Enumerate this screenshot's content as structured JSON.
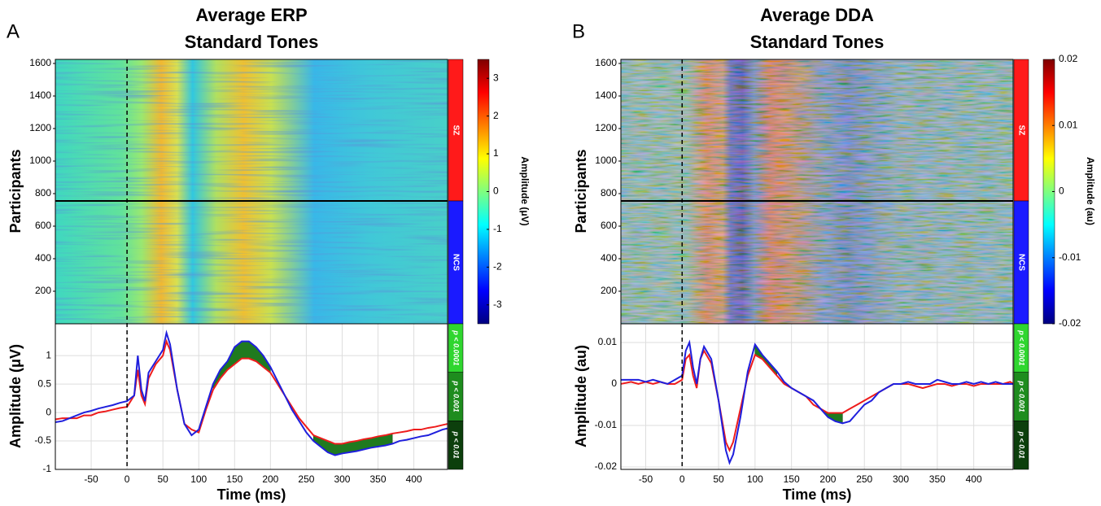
{
  "chart_data": [
    {
      "type": "line",
      "panel_label": "A",
      "title_lines": [
        "Average ERP",
        "Standard Tones"
      ],
      "xlabel": "Time (ms)",
      "ylabel": "Amplitude (μV)",
      "xlim": [
        -100,
        447
      ],
      "xticks": [
        -50,
        0,
        50,
        100,
        150,
        200,
        250,
        300,
        350,
        400
      ],
      "ylim": [
        -1,
        1.56
      ],
      "yticks": [
        -1,
        -0.5,
        0,
        0.5,
        1
      ],
      "grid": true,
      "onset": 0,
      "x": [
        -100,
        -90,
        -80,
        -70,
        -60,
        -50,
        -40,
        -30,
        -20,
        -10,
        0,
        10,
        15,
        20,
        25,
        30,
        40,
        50,
        55,
        60,
        70,
        80,
        90,
        100,
        110,
        120,
        130,
        140,
        150,
        160,
        170,
        180,
        190,
        200,
        210,
        220,
        230,
        240,
        250,
        260,
        270,
        280,
        290,
        300,
        310,
        320,
        330,
        340,
        350,
        360,
        370,
        380,
        390,
        400,
        410,
        420,
        430,
        440,
        447
      ],
      "series": [
        {
          "color": "#1f1fdd",
          "values": [
            -0.17,
            -0.15,
            -0.1,
            -0.05,
            0,
            0.03,
            0.07,
            0.1,
            0.13,
            0.17,
            0.2,
            0.3,
            1.0,
            0.4,
            0.2,
            0.7,
            0.9,
            1.1,
            1.4,
            1.2,
            0.4,
            -0.2,
            -0.4,
            -0.3,
            0.1,
            0.5,
            0.75,
            0.9,
            1.15,
            1.25,
            1.25,
            1.15,
            1.0,
            0.8,
            0.55,
            0.3,
            0.05,
            -0.15,
            -0.35,
            -0.5,
            -0.6,
            -0.7,
            -0.75,
            -0.72,
            -0.7,
            -0.68,
            -0.65,
            -0.62,
            -0.6,
            -0.58,
            -0.55,
            -0.5,
            -0.48,
            -0.45,
            -0.42,
            -0.4,
            -0.35,
            -0.3,
            -0.28
          ]
        },
        {
          "color": "#ee1c1c",
          "values": [
            -0.12,
            -0.1,
            -0.1,
            -0.1,
            -0.05,
            -0.05,
            0,
            0.02,
            0.05,
            0.08,
            0.1,
            0.3,
            0.75,
            0.3,
            0.15,
            0.6,
            0.85,
            1.0,
            1.25,
            1.1,
            0.4,
            -0.2,
            -0.3,
            -0.35,
            0.05,
            0.4,
            0.6,
            0.75,
            0.85,
            0.95,
            0.95,
            0.9,
            0.8,
            0.7,
            0.5,
            0.3,
            0.1,
            -0.1,
            -0.25,
            -0.4,
            -0.45,
            -0.5,
            -0.55,
            -0.55,
            -0.52,
            -0.5,
            -0.47,
            -0.45,
            -0.42,
            -0.4,
            -0.37,
            -0.35,
            -0.33,
            -0.3,
            -0.3,
            -0.27,
            -0.25,
            -0.22,
            -0.2
          ]
        }
      ],
      "significance": {
        "fill_color": "#1f7a1f",
        "ranges": [
          [
            120,
            200
          ],
          [
            255,
            370
          ]
        ],
        "levels": [
          {
            "label": "p < 0.0001",
            "color": "#2fd62f"
          },
          {
            "label": "p < 0.001",
            "color": "#1e8c1e"
          },
          {
            "label": "p < 0.01",
            "color": "#0c3f0c"
          }
        ]
      },
      "heatmap": {
        "ylabel": "Participants",
        "ylim": [
          0,
          1625
        ],
        "yticks": [
          200,
          400,
          600,
          800,
          1000,
          1200,
          1400,
          1600
        ],
        "group_boundary": 755,
        "groups": [
          {
            "name": "SZ",
            "color": "#ff1a1a"
          },
          {
            "name": "NCS",
            "color": "#1a1aff"
          }
        ],
        "colorbar": {
          "label": "Amplitude (μV)",
          "lim": [
            -3.5,
            3.5
          ],
          "ticks": [
            -3,
            -2,
            -1,
            0,
            1,
            2,
            3
          ]
        }
      }
    },
    {
      "type": "line",
      "panel_label": "B",
      "title_lines": [
        "Average DDA",
        "Standard Tones"
      ],
      "xlabel": "Time (ms)",
      "ylabel": "Amplitude (au)",
      "xlim": [
        -84,
        454
      ],
      "xticks": [
        -50,
        0,
        50,
        100,
        150,
        200,
        250,
        300,
        350,
        400
      ],
      "ylim": [
        -0.0206,
        0.0145
      ],
      "yticks": [
        -0.02,
        -0.01,
        0,
        0.01
      ],
      "grid": true,
      "onset": 0,
      "x": [
        -84,
        -70,
        -60,
        -50,
        -40,
        -30,
        -20,
        -10,
        0,
        5,
        10,
        15,
        20,
        25,
        30,
        40,
        50,
        60,
        65,
        70,
        80,
        90,
        100,
        110,
        120,
        130,
        140,
        150,
        160,
        170,
        180,
        190,
        200,
        210,
        220,
        230,
        240,
        250,
        260,
        270,
        280,
        290,
        300,
        310,
        320,
        330,
        340,
        350,
        360,
        370,
        380,
        390,
        400,
        410,
        420,
        430,
        440,
        450,
        454
      ],
      "series": [
        {
          "color": "#1f1fdd",
          "values": [
            0.001,
            0.001,
            0.001,
            0.0005,
            0.001,
            0.0005,
            0,
            0.001,
            0.002,
            0.008,
            0.01,
            0.004,
            0,
            0.006,
            0.009,
            0.006,
            -0.004,
            -0.016,
            -0.019,
            -0.017,
            -0.008,
            0.003,
            0.0095,
            0.007,
            0.005,
            0.003,
            0.0005,
            -0.001,
            -0.002,
            -0.003,
            -0.004,
            -0.006,
            -0.008,
            -0.009,
            -0.0095,
            -0.009,
            -0.007,
            -0.005,
            -0.004,
            -0.002,
            -0.001,
            0,
            0,
            0.0005,
            0,
            0,
            0,
            0.001,
            0.0005,
            0,
            0,
            0.0005,
            0,
            0.0005,
            0,
            0.0005,
            0,
            0,
            0
          ]
        },
        {
          "color": "#ee1c1c",
          "values": [
            0,
            0.0005,
            0,
            0.0005,
            0,
            0.0005,
            0,
            0,
            0.001,
            0.006,
            0.007,
            0.002,
            -0.001,
            0.006,
            0.008,
            0.005,
            -0.004,
            -0.014,
            -0.016,
            -0.014,
            -0.006,
            0.002,
            0.007,
            0.006,
            0.004,
            0.002,
            0,
            -0.001,
            -0.002,
            -0.003,
            -0.005,
            -0.006,
            -0.007,
            -0.007,
            -0.007,
            -0.006,
            -0.005,
            -0.004,
            -0.003,
            -0.002,
            -0.001,
            0,
            0,
            0,
            -0.0005,
            -0.001,
            -0.0005,
            0,
            0,
            -0.0005,
            0,
            0,
            -0.0005,
            0,
            0,
            0,
            0,
            0.0005,
            0
          ]
        }
      ],
      "significance": {
        "fill_color": "#1f7a1f",
        "ranges": [
          [
            100,
            130
          ],
          [
            185,
            225
          ]
        ],
        "levels": [
          {
            "label": "p < 0.0001",
            "color": "#2fd62f"
          },
          {
            "label": "p < 0.001",
            "color": "#1e8c1e"
          },
          {
            "label": "p < 0.01",
            "color": "#0c3f0c"
          }
        ]
      },
      "heatmap": {
        "ylabel": "Participants",
        "ylim": [
          0,
          1625
        ],
        "yticks": [
          200,
          400,
          600,
          800,
          1000,
          1200,
          1400,
          1600
        ],
        "group_boundary": 755,
        "groups": [
          {
            "name": "SZ",
            "color": "#ff1a1a"
          },
          {
            "name": "NCS",
            "color": "#1a1aff"
          }
        ],
        "colorbar": {
          "label": "Amplitude (au)",
          "lim": [
            -0.02,
            0.02
          ],
          "ticks": [
            -0.02,
            -0.01,
            0,
            0.01,
            0.02
          ]
        }
      }
    }
  ]
}
